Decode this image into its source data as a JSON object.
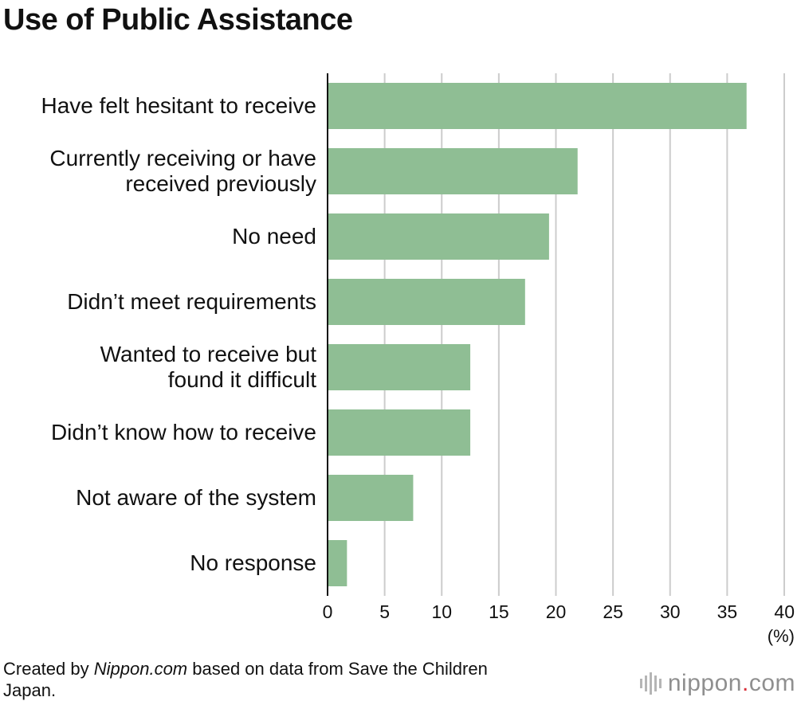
{
  "title": "Use of Public Assistance",
  "chart_data": {
    "type": "bar",
    "orientation": "horizontal",
    "categories": [
      [
        "Have felt hesitant to receive"
      ],
      [
        "Currently receiving or have",
        "received previously"
      ],
      [
        "No need"
      ],
      [
        "Didn’t meet requirements"
      ],
      [
        "Wanted to receive but",
        "found it difficult"
      ],
      [
        "Didn’t know how to receive"
      ],
      [
        "Not aware of the system"
      ],
      [
        "No response"
      ]
    ],
    "values": [
      36.7,
      21.9,
      19.4,
      17.3,
      12.5,
      12.5,
      7.5,
      1.7
    ],
    "xlim": [
      0,
      40
    ],
    "xticks": [
      "0",
      "5",
      "10",
      "15",
      "20",
      "25",
      "30",
      "35",
      "40"
    ],
    "xunit": "(%)",
    "grid": true,
    "bar_color": "#8fbe94",
    "grid_color": "#cccccc"
  },
  "footer": {
    "prefix": "Created by ",
    "source_site": "Nippon.com",
    "suffix": " based on data from Save the Children Japan."
  },
  "logo": {
    "name": "nippon",
    "dot": ".",
    "tld": "com"
  }
}
